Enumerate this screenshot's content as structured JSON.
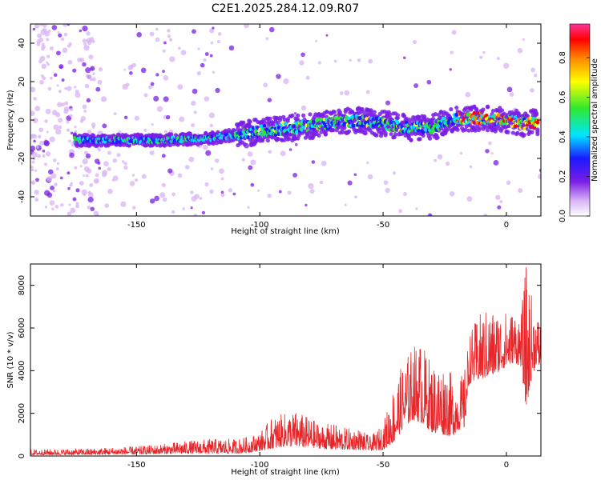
{
  "title": "C2E1.2025.284.12.09.R07",
  "colors": {
    "snr_line": "#e8262a",
    "spectrogram_cmap": [
      "#ffffff",
      "#d9b3f5",
      "#7a1de6",
      "#1a1aff",
      "#00e5ff",
      "#30e830",
      "#ffff00",
      "#ff8800",
      "#ff0000",
      "#ff3399"
    ]
  },
  "chart_data": [
    {
      "type": "heatmap",
      "title": "C2E1.2025.284.12.09.R07",
      "xlabel": "Height of straight line (km)",
      "ylabel": "Frequency (Hz)",
      "xlim": [
        -193,
        14
      ],
      "ylim": [
        -50,
        50
      ],
      "xticks": [
        -150,
        -100,
        -50,
        0
      ],
      "yticks": [
        -40,
        -20,
        0,
        20,
        40
      ],
      "xtick_labels": [
        "-150",
        "-100",
        "-50",
        "0"
      ],
      "ytick_labels": [
        "-40",
        "-20",
        "0",
        "20",
        "40"
      ],
      "ridge": {
        "description_points": [
          {
            "x": -172,
            "freq": -10.5
          },
          {
            "x": -140,
            "freq": -10.5
          },
          {
            "x": -120,
            "freq": -9.5
          },
          {
            "x": -100,
            "freq": -6
          },
          {
            "x": -80,
            "freq": -3
          },
          {
            "x": -60,
            "freq": 0
          },
          {
            "x": -50,
            "freq": -2
          },
          {
            "x": -40,
            "freq": -4
          },
          {
            "x": -30,
            "freq": -4
          },
          {
            "x": -20,
            "freq": 1
          },
          {
            "x": -10,
            "freq": 1
          },
          {
            "x": 0,
            "freq": 0
          },
          {
            "x": 7,
            "freq": -2
          },
          {
            "x": 13,
            "freq": -1
          }
        ]
      },
      "colorbar": {
        "label": "Normalized spectral amplitude",
        "range": [
          0,
          0.97
        ],
        "ticks": [
          0,
          0.2,
          0.4,
          0.6,
          0.8
        ],
        "tick_labels": [
          "0.0",
          "0.2",
          "0.4",
          "0.6",
          "0.8"
        ]
      }
    },
    {
      "type": "line",
      "xlabel": "Height of straight line (km)",
      "ylabel": "SNR (10 * v/v)",
      "xlim": [
        -193,
        14
      ],
      "ylim": [
        0,
        9000
      ],
      "xticks": [
        -150,
        -100,
        -50,
        0
      ],
      "yticks": [
        0,
        2000,
        4000,
        6000,
        8000
      ],
      "xtick_labels": [
        "-150",
        "-100",
        "-50",
        "0"
      ],
      "ytick_labels": [
        "0",
        "2000",
        "4000",
        "6000",
        "8000"
      ],
      "series": [
        {
          "name": "SNR",
          "envelope": {
            "x": [
              -193,
              -170,
              -150,
              -140,
              -130,
              -120,
              -110,
              -105,
              -100,
              -95,
              -90,
              -85,
              -80,
              -75,
              -70,
              -65,
              -60,
              -55,
              -50,
              -45,
              -42,
              -38,
              -35,
              -30,
              -25,
              -22,
              -20,
              -17,
              -15,
              -10,
              -5,
              0,
              3,
              6,
              8,
              10,
              12,
              14
            ],
            "base": [
              50,
              60,
              80,
              100,
              120,
              120,
              120,
              150,
              250,
              350,
              450,
              450,
              400,
              350,
              300,
              300,
              300,
              250,
              300,
              700,
              1300,
              1700,
              1600,
              1100,
              1000,
              900,
              1200,
              1300,
              3400,
              3600,
              3800,
              4200,
              4400,
              4200,
              2200,
              3500,
              4300,
              4100
            ],
            "peak": [
              300,
              350,
              450,
              550,
              700,
              800,
              800,
              900,
              1100,
              1800,
              2000,
              2100,
              1800,
              1500,
              1500,
              1300,
              1300,
              900,
              1500,
              3600,
              4300,
              5200,
              5400,
              4400,
              4400,
              3800,
              3500,
              4000,
              5800,
              6800,
              6900,
              6800,
              6800,
              6700,
              9000,
              7700,
              6800,
              6400
            ]
          }
        }
      ]
    }
  ]
}
